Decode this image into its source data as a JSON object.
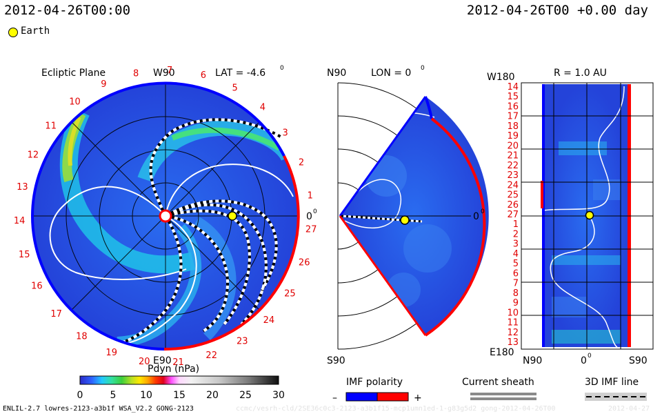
{
  "header": {
    "left_title": "2012-04-26T00:00",
    "right_title": "2012-04-26T00 +0.00 day",
    "legend_earth": "Earth"
  },
  "colors": {
    "bg_blue": "#2b57e6",
    "negative_polarity": "#0000ff",
    "positive_polarity": "#ff0000",
    "earth": "#ffff00",
    "sheath_gray": "#8a8a8a"
  },
  "chart_data": [
    {
      "type": "heatmap",
      "panel": "ecliptic",
      "title": "Ecliptic Plane",
      "lat_label": "LAT = -4.6",
      "lat_unit": "0",
      "top_label": "W90",
      "bottom_label": "E90",
      "right_label": "0",
      "right_unit": "0",
      "carrington_ticks": [
        "27",
        "1",
        "2",
        "3",
        "4",
        "5",
        "6",
        "7",
        "8",
        "9",
        "10",
        "11",
        "12",
        "13",
        "14",
        "15",
        "16",
        "17",
        "18",
        "19",
        "20",
        "21",
        "22",
        "23",
        "24",
        "25",
        "26"
      ]
    },
    {
      "type": "heatmap",
      "panel": "meridional",
      "top_label": "N90",
      "lon_label": "LON = 0",
      "lon_unit": "0",
      "bottom_label": "S90",
      "right_label": "0",
      "right_unit": "0"
    },
    {
      "type": "heatmap",
      "panel": "radius",
      "r_label": "R = 1.0 AU",
      "top_left": "W180",
      "bottom_left": "E180",
      "left_ticks": [
        "14",
        "15",
        "16",
        "17",
        "18",
        "19",
        "20",
        "21",
        "22",
        "23",
        "24",
        "25",
        "26",
        "27",
        "1",
        "2",
        "3",
        "4",
        "5",
        "6",
        "7",
        "8",
        "9",
        "10",
        "11",
        "12",
        "13"
      ],
      "bottom_ticks": [
        "N90",
        "0",
        "S90"
      ],
      "bottom_mid_unit": "0"
    }
  ],
  "colorbar": {
    "label": "Pdyn (nPa)",
    "ticks": [
      "0",
      "5",
      "10",
      "15",
      "20",
      "25",
      "30"
    ],
    "min": 0,
    "max": 30
  },
  "legends": {
    "imf_polarity": "IMF polarity",
    "minus": "–",
    "plus": "+",
    "current_sheath": "Current sheath",
    "imf_line": "3D IMF line"
  },
  "footer": {
    "model": "ENLIL-2.7 lowres-2123-a3b1f WSA_V2.2 GONG-2123",
    "path_faint": "ccmc/vesrh-cld/2SE36c0c3-2123-a3b1f15-mcp1umn1ed-1-g83g5d2 gong-2012-04-26T00",
    "date_faint": "2012-04-27"
  }
}
